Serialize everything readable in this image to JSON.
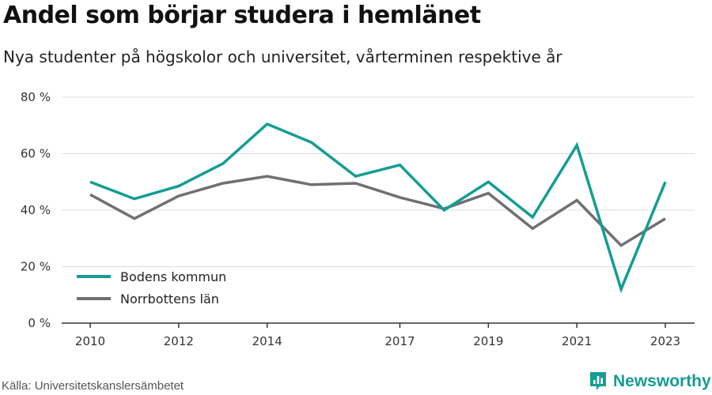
{
  "header": {
    "title": "Andel som börjar studera i hemlänet",
    "subtitle": "Nya studenter på högskolor och universitet, vårterminen respektive år"
  },
  "footer": {
    "source": "Källa: Universitetskanslersämbetet",
    "brand": "Newsworthy",
    "brand_icon": "bar-chart-logo-icon"
  },
  "colors": {
    "accent": "#149d93",
    "secondary": "#707074",
    "grid": "#dcdcdc",
    "axis": "#333333"
  },
  "chart_data": {
    "type": "line",
    "title": "Andel som börjar studera i hemlänet",
    "subtitle": "Nya studenter på högskolor och universitet, vårterminen respektive år",
    "x": [
      2010,
      2011,
      2012,
      2013,
      2014,
      2015,
      2016,
      2017,
      2018,
      2019,
      2020,
      2021,
      2022,
      2023
    ],
    "x_tick_labels": [
      "2010",
      "2012",
      "2014",
      "2017",
      "2019",
      "2021",
      "2023"
    ],
    "y_ticks": [
      0,
      20,
      40,
      60,
      80
    ],
    "y_tick_labels": [
      "0 %",
      "20 %",
      "40 %",
      "60 %",
      "80 %"
    ],
    "ylim": [
      0,
      80
    ],
    "grid": true,
    "legend_position": "bottom-left",
    "series": [
      {
        "name": "Bodens kommun",
        "color": "#149d93",
        "values": [
          50,
          44,
          48.5,
          56.5,
          70.5,
          64,
          52,
          56,
          40,
          50,
          37.5,
          63,
          12,
          50
        ]
      },
      {
        "name": "Norrbottens län",
        "color": "#707074",
        "values": [
          45.5,
          37,
          45,
          49.5,
          52,
          49,
          49.5,
          44.5,
          40.5,
          46,
          33.5,
          43.5,
          27.5,
          37
        ]
      }
    ]
  }
}
